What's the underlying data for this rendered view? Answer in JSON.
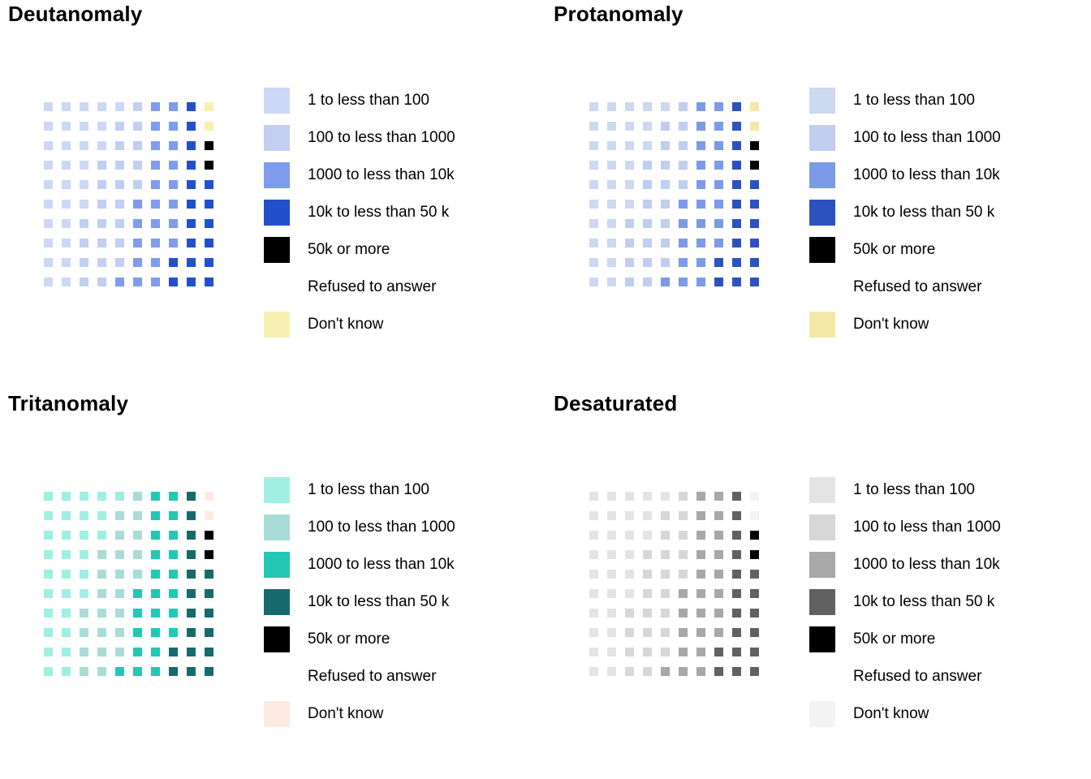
{
  "chart_data": {
    "type": "heatmap",
    "description_title": "Color-vision-deficiency simulation panels of the same waffle/legend chart",
    "legend_position": "right",
    "grid_rows": 10,
    "grid_cols": 10,
    "legend_labels": [
      "1 to less than 100",
      "100 to less than 1000",
      "1000 to less than 10k",
      "10k to less than 50 k",
      "50k or more",
      "Refused to answer",
      "Don't know"
    ],
    "grid_categories": [
      [
        1,
        1,
        1,
        1,
        1,
        2,
        3,
        3,
        4,
        7
      ],
      [
        1,
        1,
        1,
        1,
        2,
        2,
        3,
        3,
        4,
        7
      ],
      [
        1,
        1,
        1,
        1,
        2,
        2,
        3,
        3,
        4,
        5
      ],
      [
        1,
        1,
        1,
        2,
        2,
        2,
        3,
        3,
        4,
        5
      ],
      [
        1,
        1,
        1,
        2,
        2,
        2,
        3,
        3,
        4,
        4
      ],
      [
        1,
        1,
        1,
        2,
        2,
        3,
        3,
        3,
        4,
        4
      ],
      [
        1,
        1,
        2,
        2,
        2,
        3,
        3,
        3,
        4,
        4
      ],
      [
        1,
        1,
        2,
        2,
        2,
        3,
        3,
        3,
        4,
        4
      ],
      [
        1,
        1,
        2,
        2,
        2,
        3,
        3,
        4,
        4,
        4
      ],
      [
        1,
        1,
        2,
        2,
        3,
        3,
        3,
        4,
        4,
        4
      ]
    ],
    "panels": [
      {
        "title": "Deutanomaly",
        "palette": {
          "1": "#ccd8f6",
          "2": "#c2cff3",
          "3": "#7f9cee",
          "4": "#2250cd",
          "5": "#000000",
          "6": "#ffffff",
          "7": "#f7f0b2"
        }
      },
      {
        "title": "Protanomaly",
        "palette": {
          "1": "#cdd8f1",
          "2": "#c1ceef",
          "3": "#7d9ae7",
          "4": "#2c52c0",
          "5": "#000000",
          "6": "#ffffff",
          "7": "#f4e8a6"
        }
      },
      {
        "title": "Tritanomaly",
        "palette": {
          "1": "#9ff0e2",
          "2": "#aadcd7",
          "3": "#23c8b4",
          "4": "#166a6c",
          "5": "#000000",
          "6": "#ffffff",
          "7": "#fdeae3"
        }
      },
      {
        "title": "Desaturated",
        "palette": {
          "1": "#e4e4e4",
          "2": "#d7d7d7",
          "3": "#a8a8a8",
          "4": "#616161",
          "5": "#000000",
          "6": "#ffffff",
          "7": "#f3f3f3"
        }
      }
    ]
  }
}
